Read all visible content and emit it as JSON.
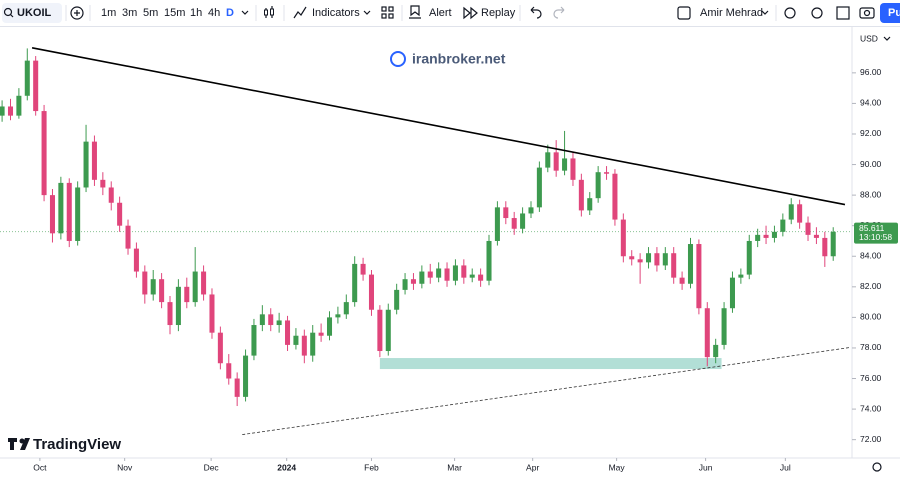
{
  "toolbar": {
    "symbol": "UKOIL",
    "intervals": [
      "1m",
      "3m",
      "5m",
      "15m",
      "1h",
      "4h",
      "D"
    ],
    "indicators": "Indicators",
    "alert": "Alert",
    "replay": "Replay",
    "user": "Amir Mehrad",
    "publish": "Pu"
  },
  "chart_data": {
    "type": "candlestick",
    "watermark": "iranbroker.net",
    "brand": "TradingView",
    "currency": "USD",
    "up_color": "#3d9a4f",
    "down_color": "#e0457b",
    "last_price": 85.611,
    "countdown": "13:10:58",
    "last_price_color": "#3d9a4f",
    "xlim": [
      -0.25,
      101
    ],
    "ylim": [
      70.8,
      99.0
    ],
    "xticks": [
      {
        "value": 4.5,
        "label": "Oct"
      },
      {
        "value": 14.6,
        "label": "Nov"
      },
      {
        "value": 24.9,
        "label": "Dec"
      },
      {
        "value": 33.9,
        "label": "2024"
      },
      {
        "value": 44.0,
        "label": "Feb"
      },
      {
        "value": 53.9,
        "label": "Mar"
      },
      {
        "value": 63.2,
        "label": "Apr"
      },
      {
        "value": 73.2,
        "label": "May"
      },
      {
        "value": 83.8,
        "label": "Jun"
      },
      {
        "value": 93.3,
        "label": "Jul"
      }
    ],
    "yticks": [
      {
        "value": 72,
        "label": "72.00"
      },
      {
        "value": 74,
        "label": "74.00"
      },
      {
        "value": 76,
        "label": "76.00"
      },
      {
        "value": 78,
        "label": "78.00"
      },
      {
        "value": 80,
        "label": "80.00"
      },
      {
        "value": 82,
        "label": "82.00"
      },
      {
        "value": 84,
        "label": "84.00"
      },
      {
        "value": 86,
        "label": "86.00"
      },
      {
        "value": 88,
        "label": "88.00"
      },
      {
        "value": 90,
        "label": "90.00"
      },
      {
        "value": 92,
        "label": "92.00"
      },
      {
        "value": 94,
        "label": "94.00"
      },
      {
        "value": 96,
        "label": "96.00"
      }
    ],
    "drawings": [
      {
        "kind": "line",
        "style": "solid",
        "color": "#000000",
        "x": [
          3.57,
          100.4
        ],
        "y": [
          97.64,
          87.38
        ]
      },
      {
        "kind": "line",
        "style": "dashed",
        "color": "#333333",
        "x": [
          28.6,
          101.5
        ],
        "y": [
          72.33,
          78.07
        ]
      },
      {
        "kind": "rect",
        "color": "#b2dfd6",
        "x": [
          45.0,
          85.7
        ],
        "y": [
          76.62,
          77.34
        ]
      }
    ],
    "ohlc": [
      [
        93.2,
        94.2,
        92.8,
        93.8
      ],
      [
        93.8,
        94.3,
        92.9,
        93.2
      ],
      [
        93.2,
        95.0,
        93.0,
        94.5
      ],
      [
        94.5,
        97.6,
        94.2,
        96.8
      ],
      [
        96.8,
        97.1,
        93.2,
        93.5
      ],
      [
        93.5,
        93.9,
        87.6,
        88.0
      ],
      [
        88.0,
        88.4,
        84.9,
        85.5
      ],
      [
        85.5,
        89.2,
        85.1,
        88.8
      ],
      [
        88.8,
        89.1,
        84.6,
        85.0
      ],
      [
        85.0,
        88.9,
        84.7,
        88.5
      ],
      [
        88.5,
        92.6,
        88.2,
        91.5
      ],
      [
        91.5,
        91.9,
        88.6,
        89.0
      ],
      [
        89.0,
        89.5,
        88.0,
        88.5
      ],
      [
        88.5,
        88.9,
        87.0,
        87.5
      ],
      [
        87.5,
        87.9,
        85.6,
        86.0
      ],
      [
        86.0,
        86.4,
        84.1,
        84.5
      ],
      [
        84.5,
        84.9,
        82.6,
        83.0
      ],
      [
        83.0,
        83.4,
        80.9,
        81.5
      ],
      [
        81.5,
        83.1,
        81.1,
        82.5
      ],
      [
        82.5,
        82.9,
        80.6,
        81.0
      ],
      [
        81.0,
        81.4,
        78.9,
        79.5
      ],
      [
        79.5,
        82.5,
        79.1,
        82.0
      ],
      [
        82.0,
        82.6,
        80.6,
        81.0
      ],
      [
        81.0,
        84.6,
        80.7,
        83.0
      ],
      [
        83.0,
        83.4,
        81.1,
        81.5
      ],
      [
        81.5,
        81.9,
        78.6,
        79.0
      ],
      [
        79.0,
        79.4,
        76.6,
        77.0
      ],
      [
        77.0,
        77.6,
        75.6,
        76.0
      ],
      [
        76.0,
        76.4,
        74.2,
        74.8
      ],
      [
        74.8,
        77.9,
        74.5,
        77.5
      ],
      [
        77.5,
        79.9,
        77.2,
        79.5
      ],
      [
        79.5,
        80.8,
        79.1,
        80.2
      ],
      [
        80.2,
        80.6,
        79.1,
        79.5
      ],
      [
        79.5,
        80.3,
        79.0,
        79.8
      ],
      [
        79.8,
        80.1,
        77.8,
        78.2
      ],
      [
        78.2,
        79.3,
        77.9,
        78.8
      ],
      [
        78.8,
        79.2,
        77.0,
        77.5
      ],
      [
        77.5,
        79.5,
        77.1,
        79.0
      ],
      [
        79.0,
        79.6,
        78.4,
        78.8
      ],
      [
        78.8,
        80.4,
        78.5,
        80.0
      ],
      [
        80.0,
        80.7,
        79.6,
        80.2
      ],
      [
        80.2,
        81.5,
        79.9,
        81.0
      ],
      [
        81.0,
        84.0,
        80.7,
        83.5
      ],
      [
        83.5,
        83.9,
        82.4,
        82.8
      ],
      [
        82.8,
        83.1,
        80.1,
        80.5
      ],
      [
        80.5,
        80.8,
        77.4,
        77.8
      ],
      [
        77.8,
        80.9,
        77.5,
        80.5
      ],
      [
        80.5,
        82.2,
        80.2,
        81.8
      ],
      [
        81.8,
        82.9,
        81.5,
        82.5
      ],
      [
        82.5,
        82.9,
        81.8,
        82.2
      ],
      [
        82.2,
        83.4,
        81.9,
        83.0
      ],
      [
        83.0,
        83.5,
        82.2,
        82.6
      ],
      [
        82.6,
        83.6,
        82.3,
        83.2
      ],
      [
        83.2,
        83.6,
        82.0,
        82.4
      ],
      [
        82.4,
        83.8,
        82.1,
        83.4
      ],
      [
        83.4,
        83.8,
        82.2,
        82.6
      ],
      [
        82.6,
        83.2,
        82.3,
        82.8
      ],
      [
        82.8,
        83.2,
        82.0,
        82.4
      ],
      [
        82.4,
        85.4,
        82.1,
        85.0
      ],
      [
        85.0,
        87.6,
        84.7,
        87.2
      ],
      [
        87.2,
        87.6,
        86.1,
        86.5
      ],
      [
        86.5,
        86.9,
        85.4,
        85.8
      ],
      [
        85.8,
        87.2,
        85.5,
        86.8
      ],
      [
        86.8,
        87.6,
        86.5,
        87.2
      ],
      [
        87.2,
        90.2,
        86.9,
        89.8
      ],
      [
        89.8,
        91.3,
        89.5,
        90.8
      ],
      [
        90.8,
        91.6,
        89.2,
        89.6
      ],
      [
        89.6,
        92.2,
        89.3,
        90.4
      ],
      [
        90.4,
        90.8,
        88.6,
        89.0
      ],
      [
        89.0,
        89.4,
        86.6,
        87.0
      ],
      [
        87.0,
        88.2,
        86.7,
        87.8
      ],
      [
        87.8,
        89.9,
        87.5,
        89.5
      ],
      [
        89.5,
        89.9,
        89.0,
        89.4
      ],
      [
        89.4,
        89.7,
        86.0,
        86.4
      ],
      [
        86.4,
        86.8,
        83.6,
        84.0
      ],
      [
        84.0,
        84.4,
        83.4,
        83.8
      ],
      [
        83.8,
        84.2,
        82.2,
        83.6
      ],
      [
        83.6,
        84.6,
        83.2,
        84.2
      ],
      [
        84.2,
        84.6,
        83.0,
        83.4
      ],
      [
        83.4,
        84.6,
        83.1,
        84.2
      ],
      [
        84.2,
        84.6,
        82.2,
        82.6
      ],
      [
        82.6,
        83.0,
        81.8,
        82.2
      ],
      [
        82.2,
        85.2,
        81.9,
        84.8
      ],
      [
        84.8,
        85.1,
        80.2,
        80.6
      ],
      [
        80.6,
        81.0,
        76.8,
        77.4
      ],
      [
        77.4,
        78.6,
        77.0,
        78.2
      ],
      [
        78.2,
        81.0,
        77.9,
        80.6
      ],
      [
        80.6,
        83.0,
        80.3,
        82.6
      ],
      [
        82.6,
        83.2,
        82.2,
        82.8
      ],
      [
        82.8,
        85.4,
        82.5,
        85.0
      ],
      [
        85.0,
        85.8,
        84.6,
        85.4
      ],
      [
        85.4,
        86.0,
        84.8,
        85.2
      ],
      [
        85.2,
        86.0,
        84.9,
        85.6
      ],
      [
        85.6,
        86.8,
        85.3,
        86.4
      ],
      [
        86.4,
        87.8,
        86.1,
        87.4
      ],
      [
        87.4,
        87.7,
        85.8,
        86.2
      ],
      [
        86.2,
        86.6,
        85.0,
        85.4
      ],
      [
        85.4,
        85.9,
        84.8,
        85.2
      ],
      [
        85.2,
        85.6,
        83.3,
        84.0
      ],
      [
        84.0,
        85.9,
        83.7,
        85.6
      ]
    ]
  }
}
